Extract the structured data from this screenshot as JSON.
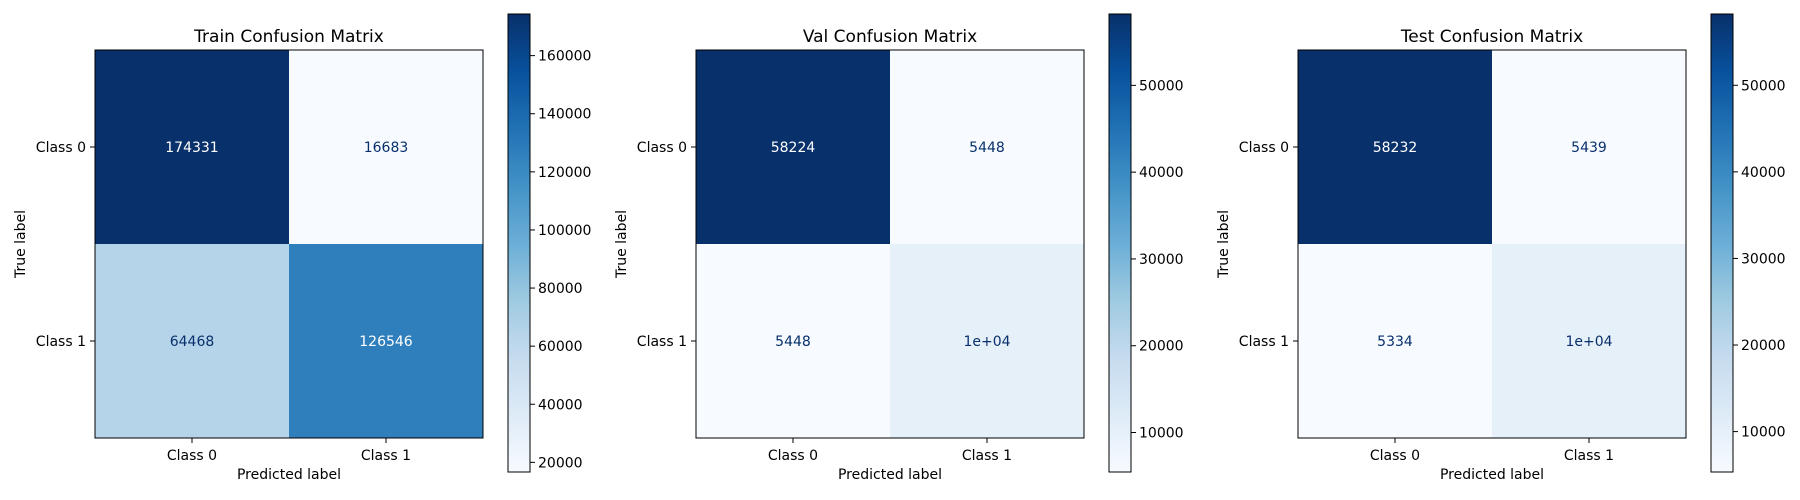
{
  "chart_data": [
    {
      "type": "heatmap",
      "title": "Train Confusion Matrix",
      "xlabel": "Predicted label",
      "ylabel": "True label",
      "x_categories": [
        "Class 0",
        "Class 1"
      ],
      "y_categories": [
        "Class 0",
        "Class 1"
      ],
      "matrix": [
        [
          174331,
          16683
        ],
        [
          64468,
          126546
        ]
      ],
      "cell_labels": [
        [
          "174331",
          "16683"
        ],
        [
          "64468",
          "126546"
        ]
      ],
      "colormap": "Blues",
      "colorbar": {
        "min": 16683,
        "max": 174331,
        "ticks": [
          20000,
          40000,
          60000,
          80000,
          100000,
          120000,
          140000,
          160000
        ]
      }
    },
    {
      "type": "heatmap",
      "title": "Val Confusion Matrix",
      "xlabel": "Predicted label",
      "ylabel": "True label",
      "x_categories": [
        "Class 0",
        "Class 1"
      ],
      "y_categories": [
        "Class 0",
        "Class 1"
      ],
      "matrix": [
        [
          58224,
          5448
        ],
        [
          5448,
          10000
        ]
      ],
      "cell_labels": [
        [
          "58224",
          "5448"
        ],
        [
          "5448",
          "1e+04"
        ]
      ],
      "colormap": "Blues",
      "colorbar": {
        "min": 5448,
        "max": 58224,
        "ticks": [
          10000,
          20000,
          30000,
          40000,
          50000
        ]
      }
    },
    {
      "type": "heatmap",
      "title": "Test Confusion Matrix",
      "xlabel": "Predicted label",
      "ylabel": "True label",
      "x_categories": [
        "Class 0",
        "Class 1"
      ],
      "y_categories": [
        "Class 0",
        "Class 1"
      ],
      "matrix": [
        [
          58232,
          5439
        ],
        [
          5334,
          10000
        ]
      ],
      "cell_labels": [
        [
          "58232",
          "5439"
        ],
        [
          "5334",
          "1e+04"
        ]
      ],
      "colormap": "Blues",
      "colorbar": {
        "min": 5334,
        "max": 58232,
        "ticks": [
          10000,
          20000,
          30000,
          40000,
          50000
        ]
      }
    }
  ]
}
